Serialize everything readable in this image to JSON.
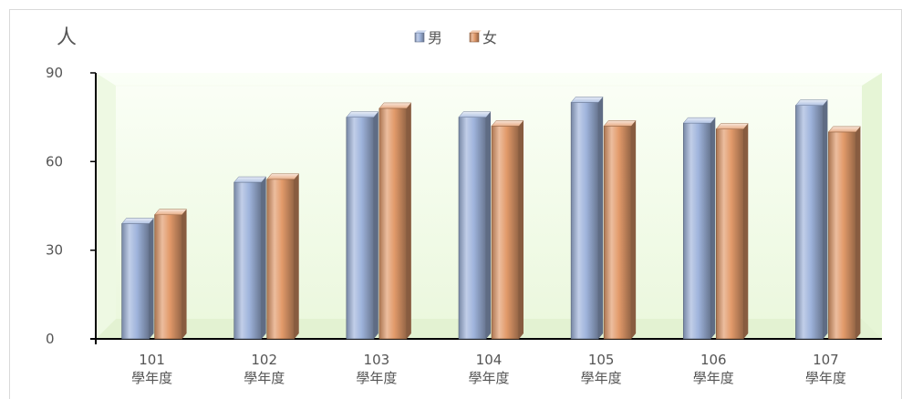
{
  "chart_data": {
    "type": "bar",
    "title": "",
    "xlabel": "",
    "ylabel": "人",
    "ylim": [
      0,
      90
    ],
    "yticks": [
      0,
      30,
      60,
      90
    ],
    "categories": [
      [
        "101",
        "學年度"
      ],
      [
        "102",
        "學年度"
      ],
      [
        "103",
        "學年度"
      ],
      [
        "104",
        "學年度"
      ],
      [
        "105",
        "學年度"
      ],
      [
        "106",
        "學年度"
      ],
      [
        "107",
        "學年度"
      ]
    ],
    "series": [
      {
        "name": "男",
        "color": "#9fb4dc",
        "values": [
          39,
          53,
          75,
          75,
          80,
          73,
          79
        ]
      },
      {
        "name": "女",
        "color": "#e29a6a",
        "values": [
          42,
          54,
          78,
          72,
          72,
          71,
          70
        ]
      }
    ],
    "legend_position": "top",
    "grid": false,
    "background": "#f0fbe6"
  }
}
